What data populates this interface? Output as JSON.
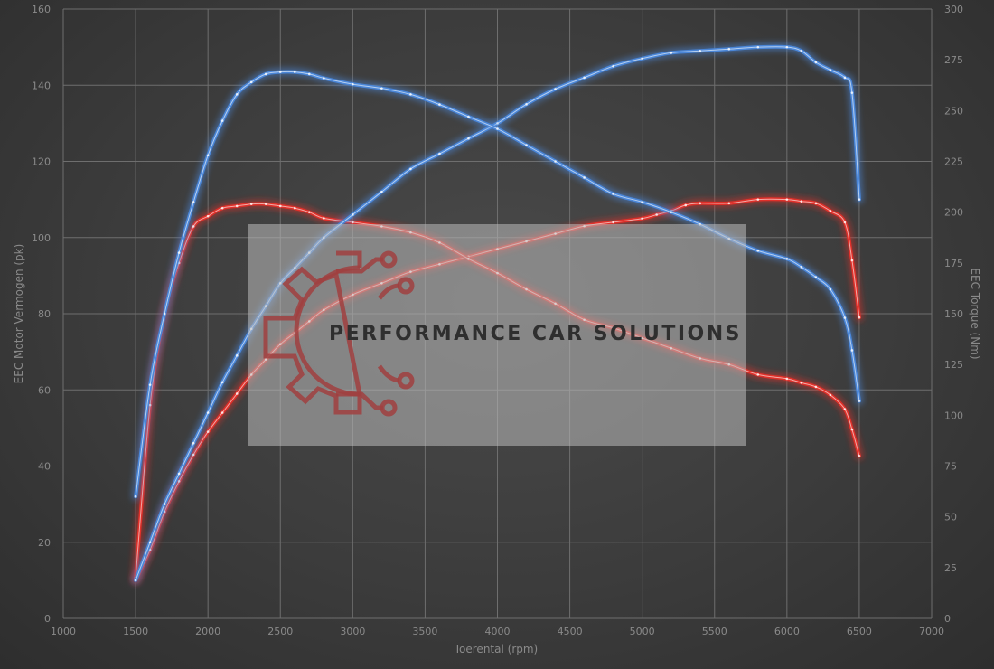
{
  "chart_data": {
    "type": "line",
    "xlabel": "Toerental (rpm)",
    "ylabel_left": "EEC Motor Vermogen (pk)",
    "ylabel_right": "EEC Torque (Nm)",
    "xlim": [
      1000,
      7000
    ],
    "ylim_left": [
      0,
      160
    ],
    "ylim_right": [
      0,
      300
    ],
    "x_ticks": [
      1000,
      1500,
      2000,
      2500,
      3000,
      3500,
      4000,
      4500,
      5000,
      5500,
      6000,
      6500,
      7000
    ],
    "y_left_ticks": [
      0,
      20,
      40,
      60,
      80,
      100,
      120,
      140,
      160
    ],
    "y_right_ticks": [
      0,
      25,
      50,
      75,
      100,
      125,
      150,
      175,
      200,
      225,
      250,
      275,
      300
    ],
    "grid": true,
    "series": [
      {
        "axis": "left",
        "color": "#4a86d8",
        "x": [
          1500,
          1600,
          1700,
          1800,
          1900,
          2000,
          2100,
          2200,
          2300,
          2400,
          2500,
          2600,
          2700,
          2800,
          3000,
          3200,
          3400,
          3600,
          3800,
          4000,
          4200,
          4400,
          4600,
          4800,
          5000,
          5200,
          5400,
          5600,
          5800,
          6000,
          6100,
          6200,
          6300,
          6400,
          6450,
          6500
        ],
        "values": [
          10,
          20,
          30,
          38,
          46,
          54,
          62,
          69,
          76,
          82,
          88,
          92,
          96,
          100,
          106,
          112,
          118,
          122,
          126,
          130,
          135,
          139,
          142,
          145,
          147,
          148.5,
          149,
          149.5,
          150,
          150,
          149,
          146,
          144,
          142,
          138,
          110
        ]
      },
      {
        "axis": "right",
        "color": "#4a86d8",
        "x": [
          1500,
          1600,
          1700,
          1800,
          1900,
          2000,
          2100,
          2200,
          2300,
          2400,
          2500,
          2600,
          2700,
          2800,
          3000,
          3200,
          3400,
          3600,
          3800,
          4000,
          4200,
          4400,
          4600,
          4800,
          5000,
          5200,
          5400,
          5600,
          5800,
          6000,
          6100,
          6200,
          6300,
          6400,
          6450,
          6500
        ],
        "values": [
          60,
          115,
          150,
          180,
          205,
          228,
          245,
          258,
          264,
          268,
          269,
          269,
          268,
          266,
          263,
          261,
          258,
          253,
          247,
          241,
          233,
          225,
          217,
          209,
          205,
          200,
          194,
          187,
          181,
          177,
          173,
          168,
          162,
          148,
          132,
          107
        ]
      },
      {
        "axis": "left",
        "color": "#e0302a",
        "x": [
          1500,
          1600,
          1700,
          1800,
          1900,
          2000,
          2100,
          2200,
          2300,
          2400,
          2500,
          2600,
          2700,
          2800,
          3000,
          3200,
          3400,
          3600,
          3800,
          4000,
          4200,
          4400,
          4600,
          4800,
          5000,
          5100,
          5200,
          5300,
          5400,
          5600,
          5800,
          6000,
          6100,
          6200,
          6300,
          6400,
          6450,
          6500
        ],
        "values": [
          10,
          18,
          28,
          36,
          43,
          49,
          54,
          59,
          64,
          68,
          72,
          75,
          78,
          81,
          85,
          88,
          91,
          93,
          95,
          97,
          99,
          101,
          103,
          104,
          105,
          106,
          107,
          108.5,
          109,
          109,
          110,
          110,
          109.5,
          109,
          107,
          104,
          94,
          79
        ]
      },
      {
        "axis": "right",
        "color": "#e0302a",
        "x": [
          1500,
          1600,
          1700,
          1800,
          1900,
          2000,
          2100,
          2200,
          2300,
          2400,
          2500,
          2600,
          2700,
          2800,
          3000,
          3200,
          3400,
          3600,
          3800,
          4000,
          4200,
          4400,
          4600,
          4800,
          5000,
          5200,
          5400,
          5600,
          5800,
          6000,
          6100,
          6200,
          6300,
          6400,
          6450,
          6500
        ],
        "values": [
          20,
          105,
          150,
          175,
          193,
          198,
          202,
          203,
          204,
          204,
          203,
          202,
          200,
          197,
          195,
          193,
          190,
          185,
          177,
          170,
          162,
          155,
          147,
          143,
          138,
          133,
          128,
          125,
          120,
          118,
          116,
          114,
          110,
          103,
          93,
          80
        ]
      }
    ]
  },
  "watermark": {
    "text": "PERFORMANCE CAR SOLUTIONS",
    "logo_icon": "gear-circuit-logo-icon"
  }
}
